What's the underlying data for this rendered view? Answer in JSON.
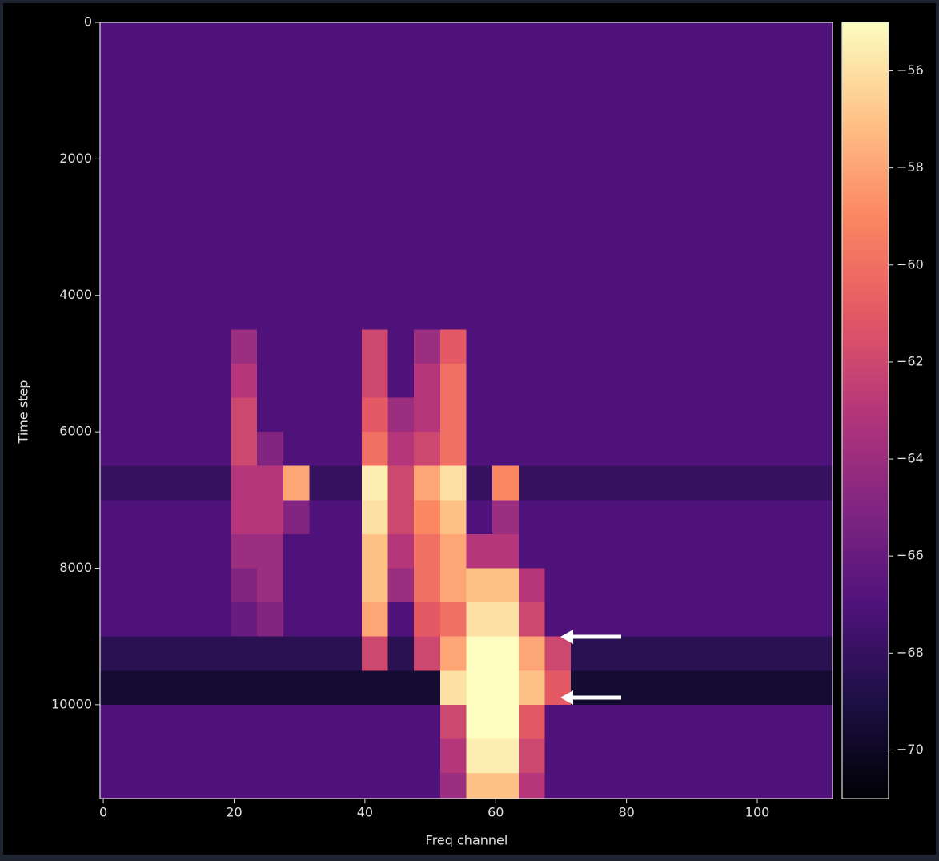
{
  "chart_data": {
    "type": "heatmap",
    "xlabel": "Freq channel",
    "ylabel": "Time step",
    "colormap": "magma",
    "xlim": [
      -0.5,
      111.5
    ],
    "ylim": [
      11375,
      0
    ],
    "xticks": [
      0,
      20,
      40,
      60,
      80,
      100
    ],
    "yticks": [
      0,
      2000,
      4000,
      6000,
      8000,
      10000
    ],
    "zlim": [
      -71,
      -55
    ],
    "zticks": [
      {
        "value": -56,
        "label": "−56"
      },
      {
        "value": -58,
        "label": "−58"
      },
      {
        "value": -60,
        "label": "−60"
      },
      {
        "value": -62,
        "label": "−62"
      },
      {
        "value": -64,
        "label": "−64"
      },
      {
        "value": -66,
        "label": "−66"
      },
      {
        "value": -68,
        "label": "−68"
      },
      {
        "value": -70,
        "label": "−70"
      }
    ],
    "x_edges": [
      -0.5,
      3.5,
      7.5,
      11.5,
      15.5,
      19.5,
      23.5,
      27.5,
      31.5,
      35.5,
      39.5,
      43.5,
      47.5,
      51.5,
      55.5,
      59.5,
      63.5,
      67.5,
      71.5,
      75.5,
      79.5,
      83.5,
      87.5,
      91.5,
      95.5,
      99.5,
      103.5,
      107.5,
      111.5
    ],
    "y_edges": [
      0,
      500,
      1000,
      1500,
      2000,
      2500,
      3000,
      3500,
      4000,
      4500,
      5000,
      5500,
      6000,
      6500,
      7000,
      7500,
      8000,
      8500,
      9000,
      9500,
      10000,
      10500,
      11000,
      11375
    ],
    "values": [
      [
        -67,
        -67,
        -67,
        -67,
        -67,
        -67,
        -67,
        -67,
        -67,
        -67,
        -67,
        -67,
        -67,
        -67,
        -67,
        -67,
        -67,
        -67,
        -67,
        -67,
        -67,
        -67,
        -67,
        -67,
        -67,
        -67,
        -67,
        -67
      ],
      [
        -67,
        -67,
        -67,
        -67,
        -67,
        -67,
        -67,
        -67,
        -67,
        -67,
        -67,
        -67,
        -67,
        -67,
        -67,
        -67,
        -67,
        -67,
        -67,
        -67,
        -67,
        -67,
        -67,
        -67,
        -67,
        -67,
        -67,
        -67
      ],
      [
        -67,
        -67,
        -67,
        -67,
        -67,
        -67,
        -67,
        -67,
        -67,
        -67,
        -67,
        -67,
        -67,
        -67,
        -67,
        -67,
        -67,
        -67,
        -67,
        -67,
        -67,
        -67,
        -67,
        -67,
        -67,
        -67,
        -67,
        -67
      ],
      [
        -67,
        -67,
        -67,
        -67,
        -67,
        -67,
        -67,
        -67,
        -67,
        -67,
        -67,
        -67,
        -67,
        -67,
        -67,
        -67,
        -67,
        -67,
        -67,
        -67,
        -67,
        -67,
        -67,
        -67,
        -67,
        -67,
        -67,
        -67
      ],
      [
        -67,
        -67,
        -67,
        -67,
        -67,
        -67,
        -67,
        -67,
        -67,
        -67,
        -67,
        -67,
        -67,
        -67,
        -67,
        -67,
        -67,
        -67,
        -67,
        -67,
        -67,
        -67,
        -67,
        -67,
        -67,
        -67,
        -67,
        -67
      ],
      [
        -67,
        -67,
        -67,
        -67,
        -67,
        -67,
        -67,
        -67,
        -67,
        -67,
        -67,
        -67,
        -67,
        -67,
        -67,
        -67,
        -67,
        -67,
        -67,
        -67,
        -67,
        -67,
        -67,
        -67,
        -67,
        -67,
        -67,
        -67
      ],
      [
        -67,
        -67,
        -67,
        -67,
        -67,
        -67,
        -67,
        -67,
        -67,
        -67,
        -67,
        -67,
        -67,
        -67,
        -67,
        -67,
        -67,
        -67,
        -67,
        -67,
        -67,
        -67,
        -67,
        -67,
        -67,
        -67,
        -67,
        -67
      ],
      [
        -67,
        -67,
        -67,
        -67,
        -67,
        -67,
        -67,
        -67,
        -67,
        -67,
        -67,
        -67,
        -67,
        -67,
        -67,
        -67,
        -67,
        -67,
        -67,
        -67,
        -67,
        -67,
        -67,
        -67,
        -67,
        -67,
        -67,
        -67
      ],
      [
        -67,
        -67,
        -67,
        -67,
        -67,
        -67,
        -67,
        -67,
        -67,
        -67,
        -67,
        -67,
        -67,
        -67,
        -67,
        -67,
        -67,
        -67,
        -67,
        -67,
        -67,
        -67,
        -67,
        -67,
        -67,
        -67,
        -67,
        -67
      ],
      [
        -67,
        -67,
        -67,
        -67,
        -67,
        -64,
        -67,
        -67,
        -67,
        -67,
        -62,
        -67,
        -64,
        -61,
        -67,
        -67,
        -67,
        -67,
        -67,
        -67,
        -67,
        -67,
        -67,
        -67,
        -67,
        -67,
        -67,
        -67
      ],
      [
        -67,
        -67,
        -67,
        -67,
        -67,
        -63,
        -67,
        -67,
        -67,
        -67,
        -62,
        -67,
        -63,
        -60,
        -67,
        -67,
        -67,
        -67,
        -67,
        -67,
        -67,
        -67,
        -67,
        -67,
        -67,
        -67,
        -67,
        -67
      ],
      [
        -67,
        -67,
        -67,
        -67,
        -67,
        -62,
        -67,
        -67,
        -67,
        -67,
        -61,
        -64,
        -63,
        -60,
        -67,
        -67,
        -67,
        -67,
        -67,
        -67,
        -67,
        -67,
        -67,
        -67,
        -67,
        -67,
        -67,
        -67
      ],
      [
        -67,
        -67,
        -67,
        -67,
        -67,
        -62,
        -65,
        -67,
        -67,
        -67,
        -60,
        -63,
        -62,
        -60,
        -67,
        -67,
        -67,
        -67,
        -67,
        -67,
        -67,
        -67,
        -67,
        -67,
        -67,
        -67,
        -67,
        -67
      ],
      [
        -68,
        -68,
        -68,
        -68,
        -68,
        -63,
        -63,
        -58,
        -68,
        -68,
        -55.5,
        -62,
        -58,
        -56,
        -68,
        -59,
        -68,
        -68,
        -68,
        -68,
        -68,
        -68,
        -68,
        -68,
        -68,
        -68,
        -68,
        -68
      ],
      [
        -67,
        -67,
        -67,
        -67,
        -67,
        -63,
        -63,
        -65,
        -67,
        -67,
        -56,
        -62,
        -59,
        -57,
        -67,
        -64,
        -67,
        -67,
        -67,
        -67,
        -67,
        -67,
        -67,
        -67,
        -67,
        -67,
        -67,
        -67
      ],
      [
        -67,
        -67,
        -67,
        -67,
        -67,
        -64,
        -64,
        -67,
        -67,
        -67,
        -57,
        -63,
        -60,
        -58,
        -63,
        -63,
        -67,
        -67,
        -67,
        -67,
        -67,
        -67,
        -67,
        -67,
        -67,
        -67,
        -67,
        -67
      ],
      [
        -67,
        -67,
        -67,
        -67,
        -67,
        -65,
        -64,
        -67,
        -67,
        -67,
        -57,
        -64,
        -60,
        -58,
        -57,
        -57,
        -63,
        -67,
        -67,
        -67,
        -67,
        -67,
        -67,
        -67,
        -67,
        -67,
        -67,
        -67
      ],
      [
        -67,
        -67,
        -67,
        -67,
        -67,
        -66,
        -65,
        -67,
        -67,
        -67,
        -58,
        -67,
        -61,
        -60,
        -56,
        -56,
        -62,
        -67,
        -67,
        -67,
        -67,
        -67,
        -67,
        -67,
        -67,
        -67,
        -67,
        -67
      ],
      [
        -68.5,
        -68.5,
        -68.5,
        -68.5,
        -68.5,
        -68.5,
        -68.5,
        -68.5,
        -68.5,
        -68.5,
        -62,
        -68.5,
        -62,
        -58,
        -55,
        -55,
        -58,
        -62,
        -68.5,
        -68.5,
        -68.5,
        -68.5,
        -68.5,
        -68.5,
        -68.5,
        -68.5,
        -68.5,
        -68.5
      ],
      [
        -69.5,
        -69.5,
        -69.5,
        -69.5,
        -69.5,
        -69.5,
        -69.5,
        -69.5,
        -69.5,
        -69.5,
        -69.5,
        -69.5,
        -69.5,
        -56,
        -55,
        -55,
        -57,
        -61,
        -69.5,
        -69.5,
        -69.5,
        -69.5,
        -69.5,
        -69.5,
        -69.5,
        -69.5,
        -69.5,
        -69.5
      ],
      [
        -67,
        -67,
        -67,
        -67,
        -67,
        -67,
        -67,
        -67,
        -67,
        -67,
        -67,
        -67,
        -67,
        -62,
        -55,
        -55,
        -61,
        -67,
        -67,
        -67,
        -67,
        -67,
        -67,
        -67,
        -67,
        -67,
        -67,
        -67
      ],
      [
        -67,
        -67,
        -67,
        -67,
        -67,
        -67,
        -67,
        -67,
        -67,
        -67,
        -67,
        -67,
        -67,
        -63,
        -55.5,
        -55.5,
        -62,
        -67,
        -67,
        -67,
        -67,
        -67,
        -67,
        -67,
        -67,
        -67,
        -67,
        -67
      ],
      [
        -67,
        -67,
        -67,
        -67,
        -67,
        -67,
        -67,
        -67,
        -67,
        -67,
        -67,
        -67,
        -67,
        -64,
        -57,
        -57,
        -63,
        -67,
        -67,
        -67,
        -67,
        -67,
        -67,
        -67,
        -67,
        -67,
        -67,
        -67
      ]
    ]
  }
}
